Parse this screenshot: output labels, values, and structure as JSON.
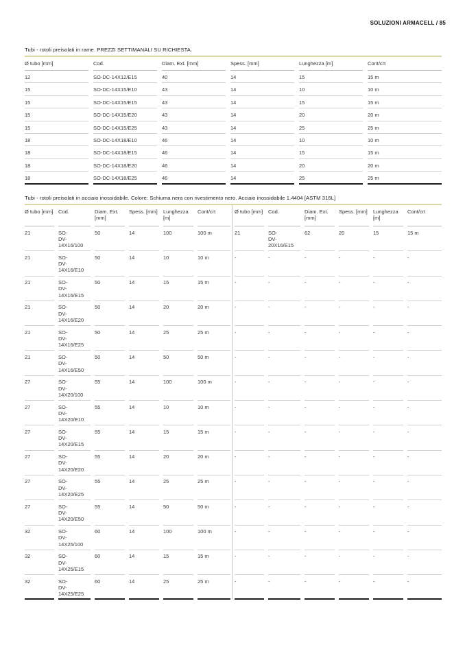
{
  "page": {
    "header": "SOLUZIONI ARMACELL / 85"
  },
  "colors": {
    "accent_rule": "#d9d8a3",
    "row_separator": "#cfcfcf",
    "table_end_border": "#1b1b1b"
  },
  "table1": {
    "title": "Tubi - rotoli preisolati in rame. PREZZI SETTIMANALI SU RICHIESTA.",
    "columns": [
      "Ø tubo [mm]",
      "Cod.",
      "Diam. Ext. [mm]",
      "Spess. [mm]",
      "Lunghezza [m]",
      "Cont/crt"
    ],
    "rows": [
      [
        "12",
        "SO-DC-14X12/E15",
        "40",
        "14",
        "15",
        "15 m"
      ],
      [
        "15",
        "SO-DC-14X15/E10",
        "43",
        "14",
        "10",
        "10 m"
      ],
      [
        "15",
        "SO-DC-14X15/E15",
        "43",
        "14",
        "15",
        "15 m"
      ],
      [
        "15",
        "SO-DC-14X15/E20",
        "43",
        "14",
        "20",
        "20 m"
      ],
      [
        "15",
        "SO-DC-14X15/E25",
        "43",
        "14",
        "25",
        "25 m"
      ],
      [
        "18",
        "SO-DC-14X18/E10",
        "46",
        "14",
        "10",
        "10 m"
      ],
      [
        "18",
        "SO-DC-14X18/E15",
        "46",
        "14",
        "15",
        "15 m"
      ],
      [
        "18",
        "SO-DC-14X18/E20",
        "46",
        "14",
        "20",
        "20 m"
      ],
      [
        "18",
        "SO-DC-14X18/E25",
        "46",
        "14",
        "25",
        "25 m"
      ]
    ]
  },
  "table2": {
    "title": "Tubi - rotoli preisolati in acciaio inossidabile. Colore: Schiuma nera con rivestimento nero. Acciaio inossidabile 1.4404 [ASTM 316L]",
    "columns": [
      "Ø tubo [mm]",
      "Cod.",
      "Diam. Ext. [mm]",
      "Spess. [mm]",
      "Lunghezza [m]",
      "Cont/crt"
    ],
    "left_rows": [
      [
        "21",
        "SO-DV-14X16/100",
        "50",
        "14",
        "100",
        "100 m"
      ],
      [
        "21",
        "SO-DV-14X16/E10",
        "50",
        "14",
        "10",
        "10 m"
      ],
      [
        "21",
        "SO-DV-14X16/E15",
        "50",
        "14",
        "15",
        "15 m"
      ],
      [
        "21",
        "SO-DV-14X16/E20",
        "50",
        "14",
        "20",
        "20 m"
      ],
      [
        "21",
        "SO-DV-14X16/E25",
        "50",
        "14",
        "25",
        "25 m"
      ],
      [
        "21",
        "SO-DV-14X16/E50",
        "50",
        "14",
        "50",
        "50 m"
      ],
      [
        "27",
        "SO-DV-14X20/100",
        "55",
        "14",
        "100",
        "100 m"
      ],
      [
        "27",
        "SO-DV-14X20/E10",
        "55",
        "14",
        "10",
        "10 m"
      ],
      [
        "27",
        "SO-DV-14X20/E15",
        "55",
        "14",
        "15",
        "15 m"
      ],
      [
        "27",
        "SO-DV-14X20/E20",
        "55",
        "14",
        "20",
        "20 m"
      ],
      [
        "27",
        "SO-DV-14X20/E25",
        "55",
        "14",
        "25",
        "25 m"
      ],
      [
        "27",
        "SO-DV-14X20/E50",
        "55",
        "14",
        "50",
        "50 m"
      ],
      [
        "32",
        "SO-DV-14X25/100",
        "60",
        "14",
        "100",
        "100 m"
      ],
      [
        "32",
        "SO-DV-14X25/E15",
        "60",
        "14",
        "15",
        "15 m"
      ],
      [
        "32",
        "SO-DV-14X25/E25",
        "60",
        "14",
        "25",
        "25 m"
      ]
    ],
    "right_rows": [
      [
        "21",
        "SO-DV-20X16/E15",
        "62",
        "20",
        "15",
        "15 m"
      ],
      [
        "-",
        "-",
        "-",
        "-",
        "-",
        "-"
      ],
      [
        "-",
        "-",
        "-",
        "-",
        "-",
        "-"
      ],
      [
        "-",
        "-",
        "-",
        "-",
        "-",
        "-"
      ],
      [
        "-",
        "-",
        "-",
        "-",
        "-",
        "-"
      ],
      [
        "-",
        "-",
        "-",
        "-",
        "-",
        "-"
      ],
      [
        "-",
        "-",
        "-",
        "-",
        "-",
        "-"
      ],
      [
        "-",
        "-",
        "-",
        "-",
        "-",
        "-"
      ],
      [
        "-",
        "-",
        "-",
        "-",
        "-",
        "-"
      ],
      [
        "-",
        "-",
        "-",
        "-",
        "-",
        "-"
      ],
      [
        "-",
        "-",
        "-",
        "-",
        "-",
        "-"
      ],
      [
        "-",
        "-",
        "-",
        "-",
        "-",
        "-"
      ],
      [
        "-",
        "-",
        "-",
        "-",
        "-",
        "-"
      ],
      [
        "-",
        "-",
        "-",
        "-",
        "-",
        "-"
      ],
      [
        "-",
        "-",
        "-",
        "-",
        "-",
        "-"
      ]
    ]
  }
}
